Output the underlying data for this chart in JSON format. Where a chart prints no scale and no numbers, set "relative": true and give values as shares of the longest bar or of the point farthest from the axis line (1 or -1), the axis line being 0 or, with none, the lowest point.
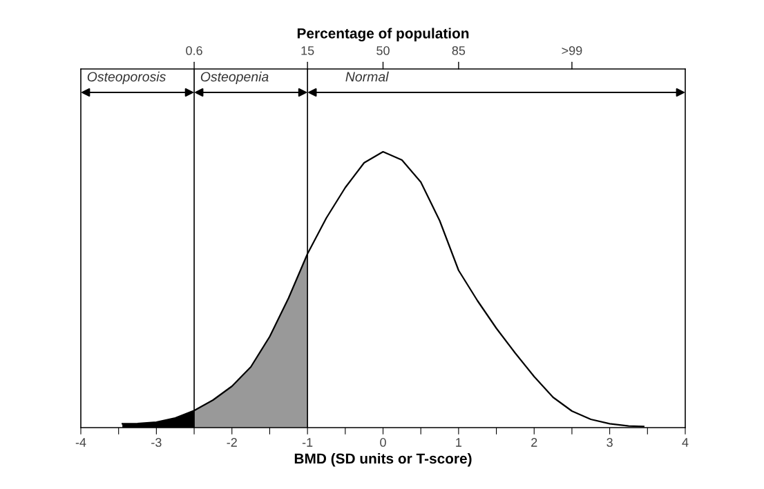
{
  "chart_data": {
    "type": "line",
    "xlabel": "BMD (SD units or T-score)",
    "x2label": "Percentage of population",
    "relative": true,
    "xlim": [
      -4,
      4
    ],
    "xticks": [
      -4,
      {
        "value": -3.5,
        "label": null
      },
      -3,
      {
        "value": -2.5,
        "label": null
      },
      -2,
      {
        "value": -1.5,
        "label": null
      },
      -1,
      {
        "value": -0.5,
        "label": null
      },
      0,
      {
        "value": 0.5,
        "label": null
      },
      1,
      {
        "value": 1.5,
        "label": null
      },
      2,
      {
        "value": 2.5,
        "label": null
      },
      3,
      {
        "value": 3.5,
        "label": null
      },
      4
    ],
    "series": [
      {
        "color": "#000000",
        "x": [
          -3.45,
          -3.25,
          -3,
          -2.75,
          -2.5,
          -2.25,
          -2,
          -1.75,
          -1.5,
          -1.25,
          -1,
          -0.75,
          -0.5,
          -0.25,
          0,
          0.25,
          0.5,
          0.75,
          1,
          1.25,
          1.5,
          1.75,
          2,
          2.25,
          2.5,
          2.75,
          3,
          3.25,
          3.45
        ],
        "values": [
          0.014,
          0.015,
          0.02,
          0.035,
          0.062,
          0.1,
          0.15,
          0.22,
          0.33,
          0.47,
          0.63,
          0.76,
          0.87,
          0.96,
          1,
          0.97,
          0.89,
          0.75,
          0.57,
          0.46,
          0.36,
          0.27,
          0.185,
          0.11,
          0.06,
          0.03,
          0.014,
          0.006,
          0.004
        ]
      },
      {
        "type": "area",
        "color": "#000000",
        "x": [
          -3.45,
          -3.25,
          -3,
          -2.75,
          -2.5
        ],
        "values": [
          0.014,
          0.015,
          0.02,
          0.035,
          0.062
        ]
      },
      {
        "type": "area",
        "color": "#999999",
        "x": [
          -2.5,
          -2.25,
          -2,
          -1.75,
          -1.5,
          -1.25,
          -1
        ],
        "values": [
          0.062,
          0.1,
          0.15,
          0.22,
          0.33,
          0.47,
          0.63
        ]
      }
    ],
    "ref_lines": [
      {
        "axis": "x",
        "value": -2.5,
        "color": "#000000"
      },
      {
        "axis": "x",
        "value": -1,
        "color": "#000000"
      }
    ],
    "annotations": [
      {
        "text": "0.6",
        "x": -2.5
      },
      {
        "text": "15",
        "x": -1
      },
      {
        "text": "50",
        "x": 0
      },
      {
        "text": "85",
        "x": 1
      },
      {
        "text": ">99",
        "x": 2.5
      },
      "Osteoporosis",
      "Osteopenia",
      "Normal"
    ],
    "grid": false,
    "legend": false,
    "marker": "none",
    "line_style": "solid"
  }
}
